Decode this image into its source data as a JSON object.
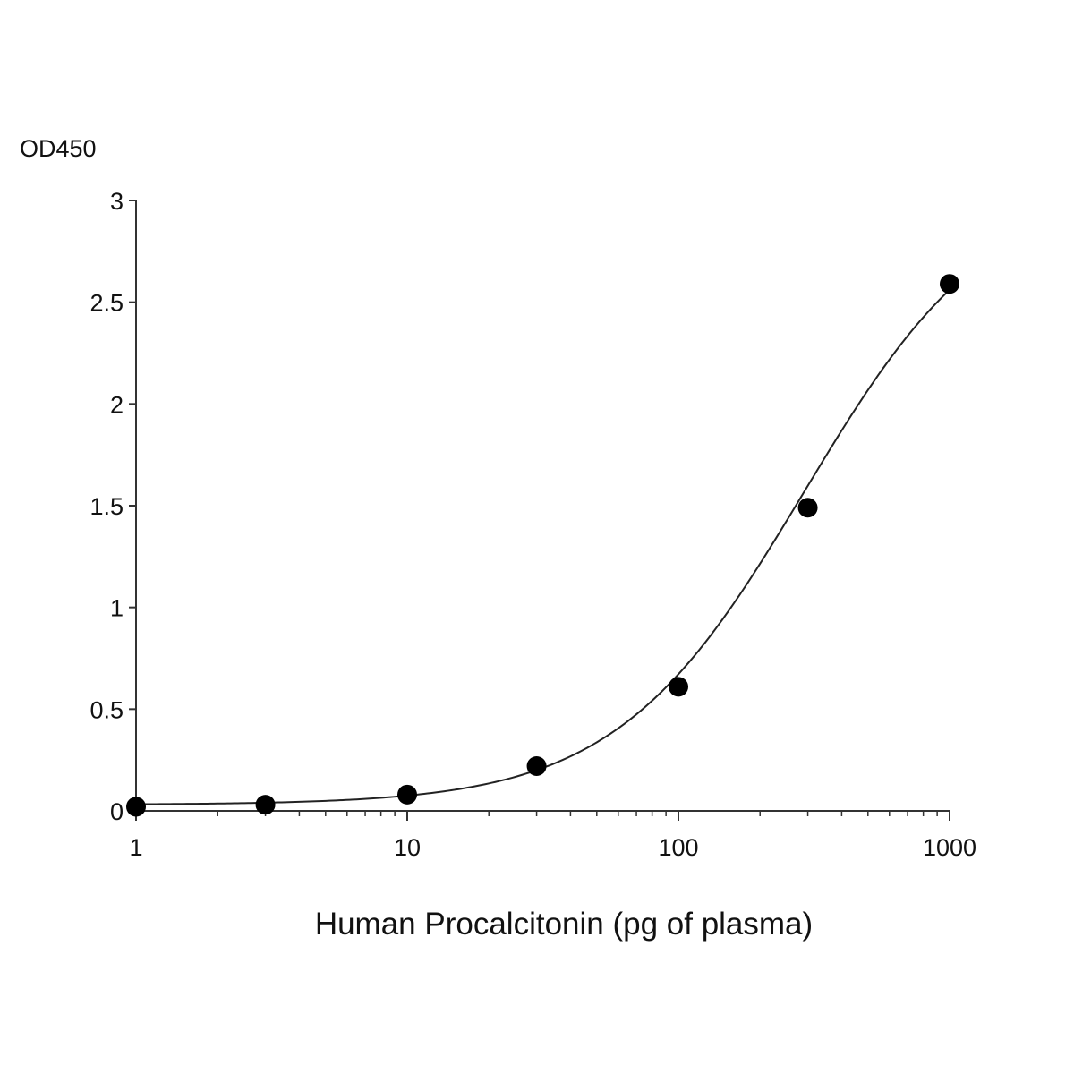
{
  "chart_data": {
    "type": "scatter",
    "title": "",
    "ylabel": "OD450",
    "xlabel": "Human Procalcitonin (pg of plasma)",
    "x_scale": "log",
    "xlim": [
      1,
      1000
    ],
    "ylim": [
      0,
      3
    ],
    "x_ticks": [
      1,
      10,
      100,
      1000
    ],
    "x_tick_labels": [
      "1",
      "10",
      "100",
      "1000"
    ],
    "y_ticks": [
      0,
      0.5,
      1,
      1.5,
      2,
      2.5,
      3
    ],
    "y_tick_labels": [
      "0",
      "0.5",
      "1",
      "1.5",
      "2",
      "2.5",
      "3"
    ],
    "grid": false,
    "legend": "none",
    "series": [
      {
        "marker": "filled-circle",
        "x": [
          1,
          3,
          10,
          30,
          100,
          300,
          1000
        ],
        "y": [
          0.02,
          0.03,
          0.08,
          0.22,
          0.61,
          1.49,
          2.59
        ]
      }
    ],
    "fit_curve": {
      "type": "4PL",
      "bottom": 0.03,
      "top": 3.1,
      "ec50": 290,
      "hill": 1.25
    },
    "colors": {
      "marker": "#000000",
      "axis": "#333333",
      "curve": "#222222"
    }
  }
}
